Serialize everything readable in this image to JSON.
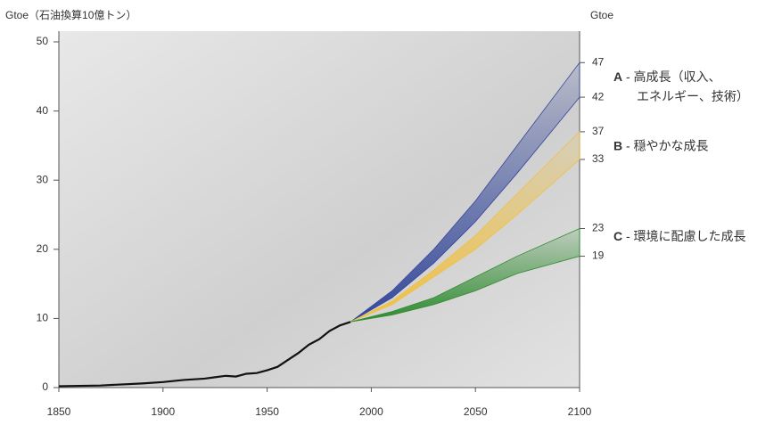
{
  "chart_data": {
    "type": "line",
    "y_label": "Gtoe（石油換算10億トン）",
    "y2_label": "Gtoe",
    "xlim": [
      1850,
      2100
    ],
    "xticks": [
      1850,
      1900,
      1950,
      2000,
      2050,
      2100
    ],
    "ylim": [
      0,
      50
    ],
    "yticks": [
      0,
      10,
      20,
      30,
      40,
      50
    ],
    "y2lim": [
      0,
      50
    ],
    "y2ticks": [
      47,
      42,
      37,
      33,
      23,
      19
    ],
    "history": {
      "color": "#111111",
      "x": [
        1850,
        1870,
        1890,
        1900,
        1910,
        1920,
        1925,
        1930,
        1935,
        1940,
        1945,
        1950,
        1955,
        1960,
        1965,
        1970,
        1975,
        1980,
        1985,
        1990
      ],
      "values": [
        0.2,
        0.3,
        0.6,
        0.8,
        1.1,
        1.3,
        1.5,
        1.7,
        1.6,
        2.0,
        2.1,
        2.5,
        3.0,
        4.0,
        5.0,
        6.2,
        7.0,
        8.2,
        9.0,
        9.5
      ]
    },
    "x": [
      1990,
      2010,
      2030,
      2050,
      2070,
      2100
    ],
    "series": [
      {
        "name": "A",
        "label_lines": [
          "- 高成長（収入、",
          "エネルギー、技術）"
        ],
        "color": "#34479a",
        "label_color": "#2a4a9a",
        "upper": [
          9.5,
          14,
          20,
          27,
          35,
          47
        ],
        "lower": [
          9.5,
          13,
          18,
          24,
          31,
          42
        ]
      },
      {
        "name": "B",
        "label_lines": [
          "- 穏やかな成長"
        ],
        "color": "#f0c040",
        "label_color": "#111111",
        "upper": [
          9.5,
          12.5,
          17,
          22,
          28,
          37
        ],
        "lower": [
          9.5,
          12,
          16,
          20,
          25,
          33
        ]
      },
      {
        "name": "C",
        "label_lines": [
          "- 環境に配慮した成長"
        ],
        "color": "#2e8b2e",
        "label_color": "#2e8b2e",
        "upper": [
          9.5,
          11,
          13,
          16,
          19,
          23
        ],
        "lower": [
          9.5,
          10.5,
          12,
          14,
          16.5,
          19
        ]
      }
    ]
  }
}
